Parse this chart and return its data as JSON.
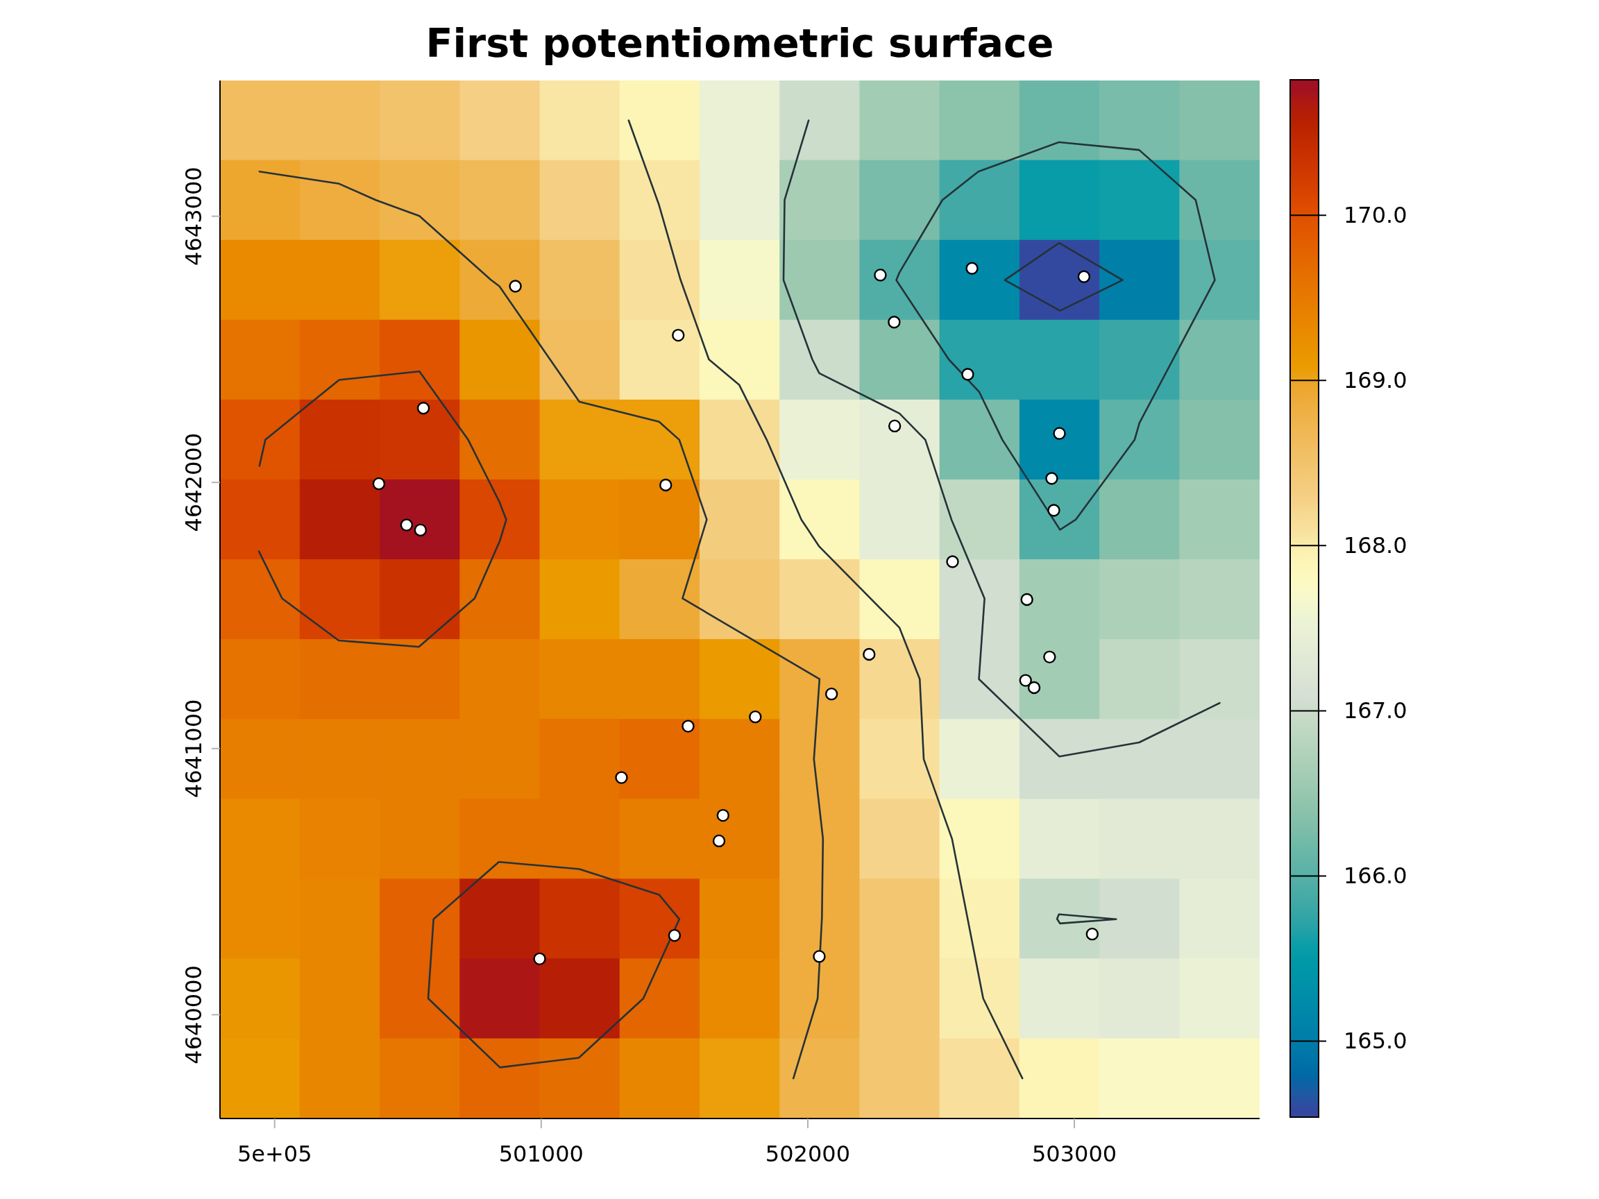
{
  "chart_data": {
    "type": "heatmap",
    "title": "First potentiometric surface",
    "cells": [
      [
        168.6,
        168.6,
        168.5,
        168.3,
        168.05,
        167.9,
        167.5,
        167.0,
        166.6,
        166.4,
        166.15,
        166.25,
        166.35
      ],
      [
        168.95,
        168.85,
        168.75,
        168.65,
        168.3,
        168.05,
        167.5,
        166.65,
        166.25,
        165.85,
        165.55,
        165.6,
        166.15
      ],
      [
        169.3,
        169.3,
        169.05,
        168.9,
        168.55,
        168.1,
        167.7,
        166.55,
        165.95,
        165.2,
        164.55,
        165.05,
        166.05
      ],
      [
        169.6,
        169.75,
        169.95,
        169.15,
        168.6,
        168.05,
        167.85,
        167.0,
        166.35,
        165.7,
        165.7,
        165.8,
        166.25
      ],
      [
        169.95,
        170.35,
        170.3,
        169.65,
        169.05,
        169.05,
        168.15,
        167.5,
        167.4,
        166.25,
        165.2,
        166.05,
        166.35
      ],
      [
        170.1,
        170.6,
        170.75,
        170.1,
        169.3,
        169.35,
        168.35,
        167.85,
        167.4,
        166.9,
        165.95,
        166.35,
        166.6
      ],
      [
        169.8,
        170.15,
        170.35,
        169.65,
        169.1,
        168.9,
        168.45,
        168.2,
        167.85,
        167.05,
        166.6,
        166.7,
        166.8
      ],
      [
        169.6,
        169.65,
        169.65,
        169.45,
        169.35,
        169.35,
        169.1,
        168.85,
        168.2,
        167.05,
        166.6,
        166.9,
        167.0
      ],
      [
        169.45,
        169.45,
        169.45,
        169.45,
        169.6,
        169.7,
        169.45,
        168.85,
        168.1,
        167.5,
        167.05,
        167.05,
        167.05
      ],
      [
        169.3,
        169.4,
        169.45,
        169.6,
        169.6,
        169.45,
        169.45,
        168.85,
        168.25,
        167.85,
        167.4,
        167.35,
        167.35
      ],
      [
        169.3,
        169.35,
        169.8,
        170.6,
        170.35,
        170.15,
        169.35,
        168.85,
        168.45,
        167.95,
        166.95,
        167.05,
        167.4
      ],
      [
        169.15,
        169.35,
        169.8,
        170.7,
        170.6,
        169.75,
        169.3,
        168.85,
        168.45,
        168.0,
        167.4,
        167.35,
        167.5
      ],
      [
        169.1,
        169.35,
        169.55,
        169.75,
        169.65,
        169.35,
        169.05,
        168.75,
        168.45,
        168.1,
        167.9,
        167.75,
        167.75
      ]
    ],
    "clim": [
      164.54,
      170.82
    ],
    "cticks": [
      {
        "value": 165,
        "label": "165.0"
      },
      {
        "value": 166,
        "label": "166.0"
      },
      {
        "value": 167,
        "label": "167.0"
      },
      {
        "value": 168,
        "label": "168.0"
      },
      {
        "value": 169,
        "label": "169.0"
      },
      {
        "value": 170,
        "label": "170.0"
      }
    ],
    "xlim": [
      499795,
      503695
    ],
    "ylim": [
      4639610,
      4643510
    ],
    "xticks": [
      {
        "value": 500000,
        "label": "5e+05"
      },
      501000,
      502000,
      503000
    ],
    "yticks": [
      4640000,
      4641000,
      4642000,
      4643000
    ],
    "series": [
      {
        "type": "line",
        "color": "#263238",
        "x": [
          499943,
          500242,
          500379,
          500543,
          500811,
          500843,
          501143,
          501442,
          501518,
          501621,
          501530,
          502044,
          502023,
          502057,
          502053,
          502037,
          501946
        ],
        "values": [
          4643168,
          4643122,
          4643061,
          4643001,
          4642761,
          4642737,
          4642303,
          4642228,
          4642160,
          4641860,
          4641564,
          4641261,
          4640960,
          4640661,
          4640364,
          4640061,
          4639761
        ]
      },
      {
        "type": "line",
        "color": "#263238",
        "x": [
          501328,
          501442,
          501522,
          501629,
          501743,
          501846,
          501976,
          502043,
          502344,
          502420,
          502435,
          502541,
          502658,
          502805
        ],
        "values": [
          4643360,
          4643042,
          4642763,
          4642462,
          4642366,
          4642160,
          4641860,
          4641759,
          4641454,
          4641261,
          4640960,
          4640661,
          4640061,
          4639761
        ]
      },
      {
        "type": "line",
        "color": "#263238",
        "x": [
          502003,
          501913,
          501909,
          502017,
          502043,
          502344,
          502441,
          502539,
          502663,
          502642,
          502944,
          503243,
          503545
        ],
        "values": [
          4643360,
          4643061,
          4642760,
          4642462,
          4642410,
          4642259,
          4642160,
          4641860,
          4641564,
          4641261,
          4640970,
          4641023,
          4641171
        ]
      },
      {
        "type": "line",
        "color": "#263238",
        "x": [
          502944,
          503243,
          503455,
          503527,
          503370,
          503244,
          503226,
          503005,
          502946,
          502730,
          502643,
          502529,
          502332,
          502344,
          502505,
          502640,
          502942
        ],
        "values": [
          4643278,
          4643249,
          4643061,
          4642760,
          4642462,
          4642223,
          4642160,
          4641860,
          4641822,
          4642160,
          4642340,
          4642462,
          4642760,
          4642789,
          4643061,
          4643168,
          4643278
        ]
      },
      {
        "type": "line",
        "color": "#263238",
        "x": [
          502944,
          503181,
          502946,
          502739,
          502942
        ],
        "values": [
          4642899,
          4642760,
          4642645,
          4642760,
          4642899
        ]
      },
      {
        "type": "line",
        "color": "#263238",
        "x": [
          499943,
          499965,
          500242,
          500543,
          500726,
          500843,
          500869,
          500845,
          500750,
          500541,
          500240,
          500028,
          499941
        ],
        "values": [
          4642062,
          4642160,
          4642385,
          4642417,
          4642160,
          4641927,
          4641860,
          4641781,
          4641564,
          4641382,
          4641406,
          4641564,
          4641741
        ]
      },
      {
        "type": "line",
        "color": "#263238",
        "x": [
          500843,
          501143,
          501442,
          501518,
          501383,
          501141,
          500845,
          500576,
          500596,
          500841
        ],
        "values": [
          4640574,
          4640547,
          4640451,
          4640359,
          4640061,
          4639838,
          4639802,
          4640061,
          4640359,
          4640574
        ]
      },
      {
        "type": "line",
        "color": "#263238",
        "x": [
          502944,
          503157,
          502946,
          502935,
          502942
        ],
        "values": [
          4640377,
          4640359,
          4640343,
          4640360,
          4640377
        ]
      },
      {
        "type": "scatter",
        "color": "#ffffff",
        "marker": "circle",
        "x": [
          500903,
          501514,
          500558,
          500391,
          501467,
          500495,
          500547,
          502272,
          502616,
          503036,
          502324,
          502600,
          502326,
          502944,
          502915,
          502923,
          502543,
          502822,
          502907,
          502817,
          502849,
          502230,
          502089,
          501803,
          502043,
          503067,
          501551,
          501301,
          501682,
          501667,
          501500,
          500994
        ],
        "values": [
          4642737,
          4642553,
          4642279,
          4641995,
          4641990,
          4641840,
          4641821,
          4642779,
          4642804,
          4642773,
          4642602,
          4642406,
          4642212,
          4642184,
          4642015,
          4641895,
          4641702,
          4641560,
          4641344,
          4641256,
          4641229,
          4641354,
          4641205,
          4641119,
          4640219,
          4640303,
          4641084,
          4640891,
          4640749,
          4640653,
          4640298,
          4640210
        ]
      }
    ]
  }
}
